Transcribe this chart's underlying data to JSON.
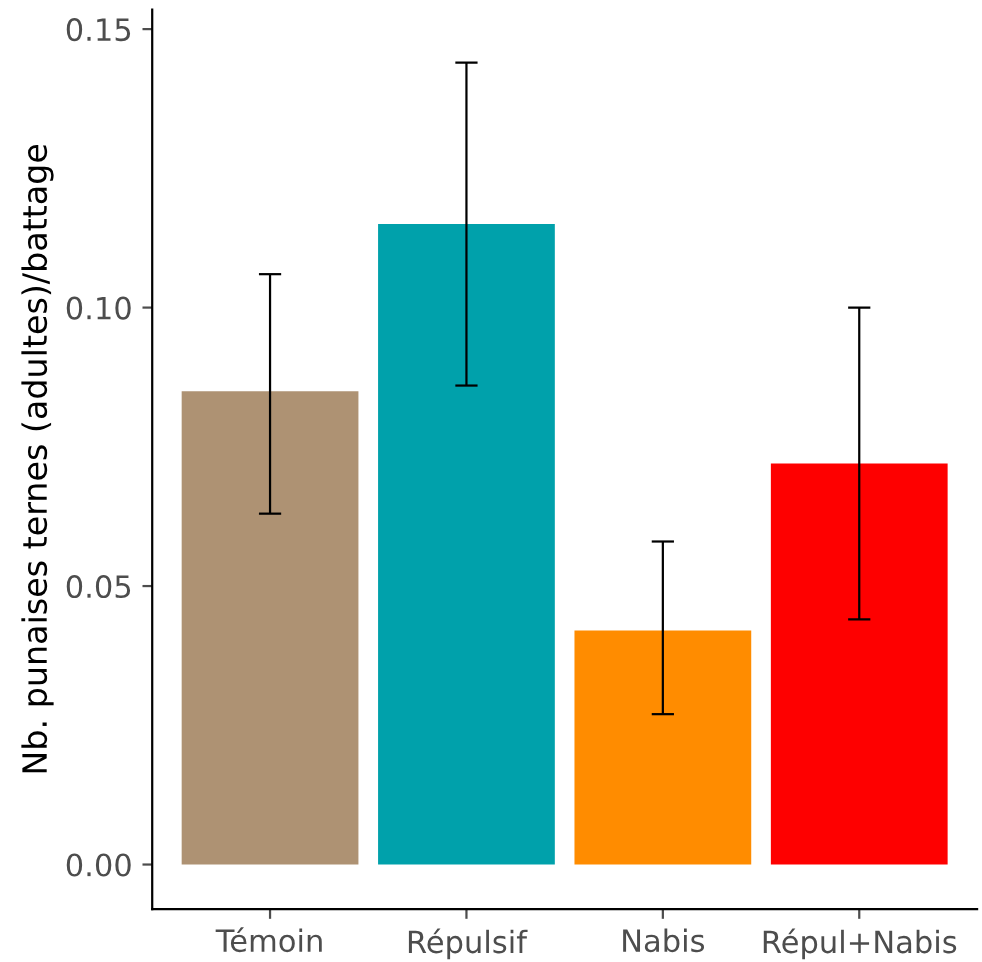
{
  "chart_data": {
    "type": "bar",
    "ylabel": "Nb. punaises ternes (adultes)/battage",
    "categories": [
      "Témoin",
      "Répulsif",
      "Nabis",
      "Répul+Nabis"
    ],
    "values": [
      0.085,
      0.115,
      0.042,
      0.072
    ],
    "colors": [
      "#ae9273",
      "#00a1ab",
      "#ff8c00",
      "#fe0000"
    ],
    "errors": [
      [
        0.063,
        0.106
      ],
      [
        0.086,
        0.144
      ],
      [
        0.027,
        0.058
      ],
      [
        0.044,
        0.1
      ]
    ],
    "ylim": [
      -0.008,
      0.1535
    ],
    "yticks": [
      {
        "value": 0,
        "label": "0.00"
      },
      {
        "value": 0.05,
        "label": "0.05"
      },
      {
        "value": 0.1,
        "label": "0.10"
      },
      {
        "value": 0.15,
        "label": "0.15"
      }
    ],
    "grid": false,
    "legend": false
  }
}
